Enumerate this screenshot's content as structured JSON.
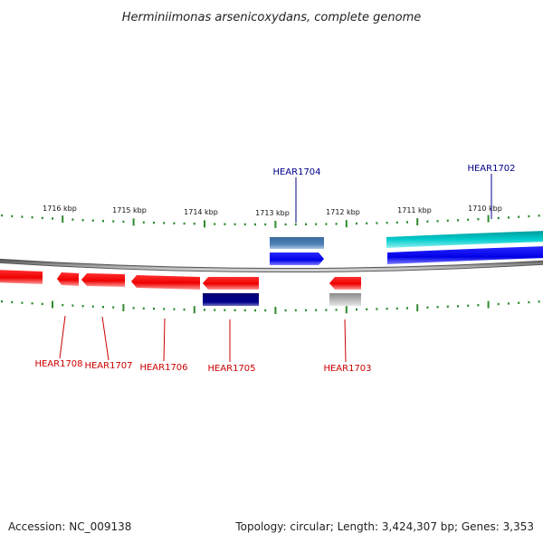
{
  "title": "Herminiimonas arsenicoxydans, complete genome",
  "footer": {
    "accession": "Accession: NC_009138",
    "summary": "Topology: circular; Length: 3,424,307 bp; Genes: 3,353"
  },
  "colors": {
    "tick": "#2e8b2e",
    "backbone": "#8c8c8c",
    "forward_label": "#00008b",
    "reverse_label": "#cc0000"
  },
  "tick_labels": [
    "1716 kbp",
    "1715 kbp",
    "1714 kbp",
    "1713 kbp",
    "1712 kbp",
    "1711 kbp",
    "1710 kbp"
  ],
  "genes": [
    {
      "label": "HEAR1702",
      "strand": "forward"
    },
    {
      "label": "HEAR1703",
      "strand": "reverse"
    },
    {
      "label": "HEAR1704",
      "strand": "forward"
    },
    {
      "label": "HEAR1705",
      "strand": "reverse"
    },
    {
      "label": "HEAR1706",
      "strand": "reverse"
    },
    {
      "label": "HEAR1707",
      "strand": "reverse"
    },
    {
      "label": "HEAR1708",
      "strand": "reverse"
    }
  ]
}
